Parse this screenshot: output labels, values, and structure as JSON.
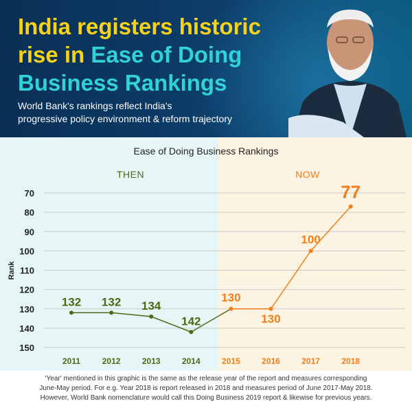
{
  "header": {
    "title_line1": "India registers historic",
    "title_line2_plain": "rise in ",
    "title_line2_highlight": "Ease of Doing",
    "title_line3": "Business Rankings",
    "subtitle_line1": "World Bank's rankings reflect India's",
    "subtitle_line2": "progressive policy environment & reform trajectory"
  },
  "colors": {
    "header_bg": "#0d3e6b",
    "title_yellow": "#f7d21a",
    "title_cyan": "#30d2d8",
    "then_green": "#4c6a13",
    "now_orange": "#f07e1b",
    "then_bg": "#e6f5f6",
    "now_bg": "#fdf3e3"
  },
  "eras": {
    "then": "THEN",
    "now": "NOW"
  },
  "chart_data": {
    "type": "line",
    "title": "Ease of Doing Business Rankings",
    "xlabel": "",
    "ylabel": "Rank",
    "y_inverted": true,
    "ylim": [
      150,
      70
    ],
    "yticks": [
      70,
      80,
      90,
      100,
      110,
      120,
      130,
      140,
      150
    ],
    "grid": true,
    "categories": [
      "2011",
      "2012",
      "2013",
      "2014",
      "2015",
      "2016",
      "2017",
      "2018"
    ],
    "series": [
      {
        "name": "THEN",
        "color": "#4c6a13",
        "x": [
          "2011",
          "2012",
          "2013",
          "2014"
        ],
        "values": [
          132,
          132,
          134,
          142
        ]
      },
      {
        "name": "NOW",
        "color": "#f07e1b",
        "x": [
          "2015",
          "2016",
          "2017",
          "2018"
        ],
        "values": [
          130,
          130,
          100,
          77
        ]
      }
    ],
    "transition": {
      "color": "#4c6a13",
      "x": [
        "2014",
        "2015"
      ],
      "values": [
        142,
        130
      ]
    }
  },
  "footnote": {
    "line1": "'Year' mentioned in this graphic is the same as the release year of the report and measures corresponding",
    "line2": "June-May period. For e.g. Year 2018 is report released in 2018 and measures period of June 2017-May 2018.",
    "line3": "However, World Bank nomenclature would call this Doing Business 2019 report & likewise for previous years."
  }
}
